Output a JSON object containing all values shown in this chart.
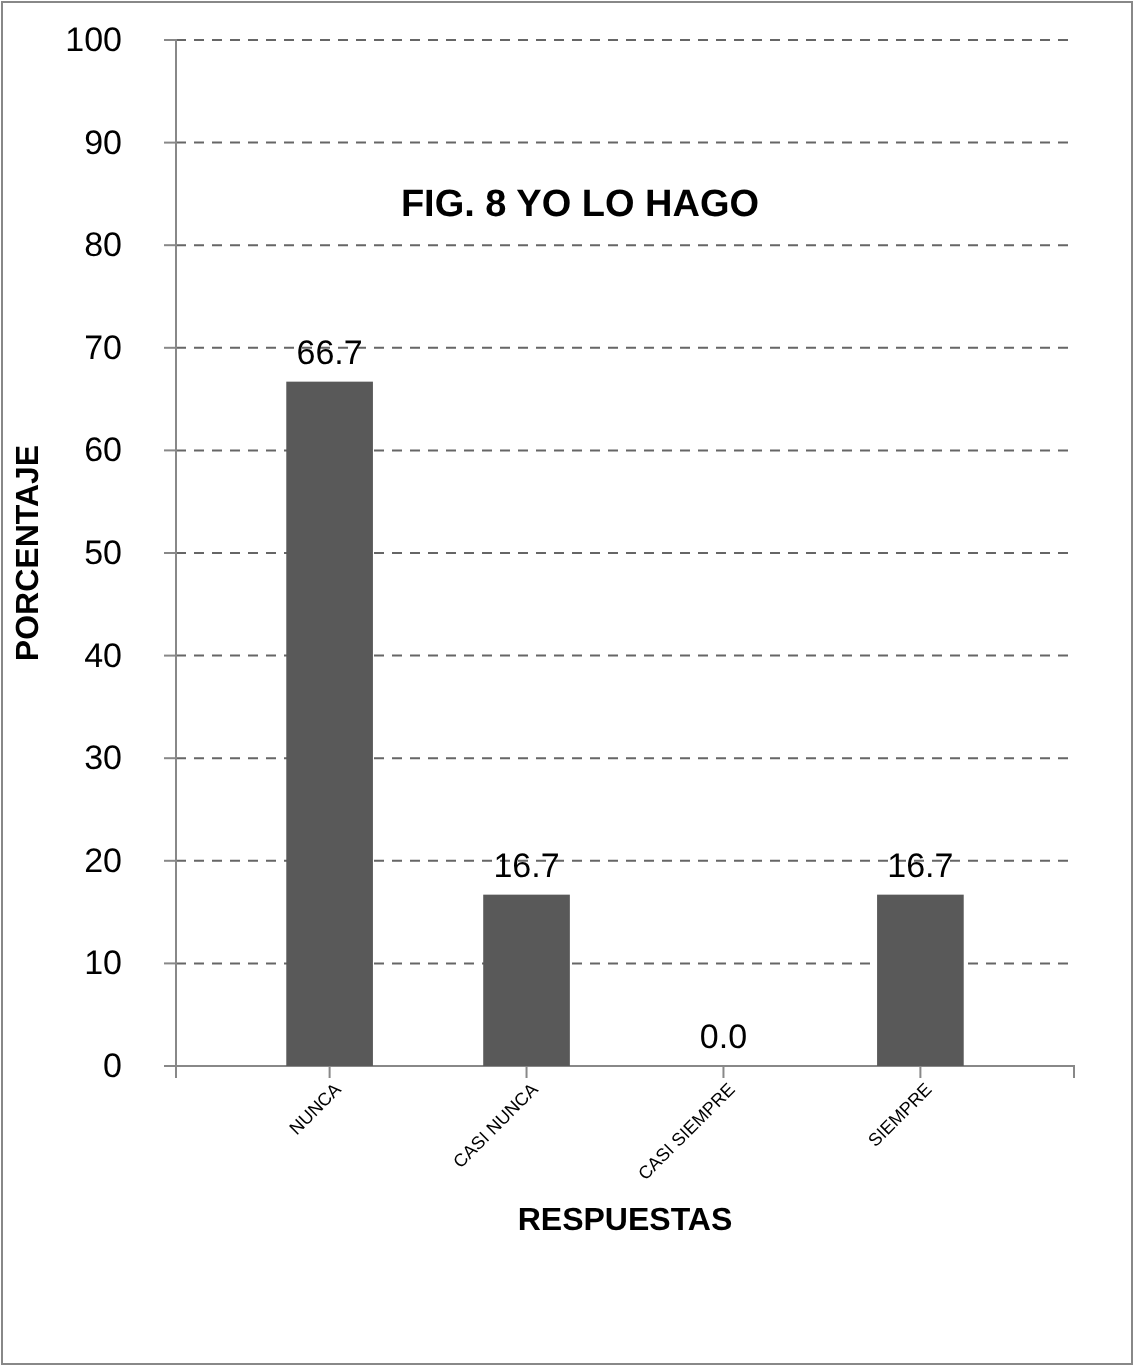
{
  "chart_data": {
    "type": "bar",
    "title": "FIG. 8 YO LO HAGO",
    "xlabel": "RESPUESTAS",
    "ylabel": "PORCENTAJE",
    "categories": [
      "NUNCA",
      "CASI NUNCA",
      "CASI SIEMPRE",
      "SIEMPRE"
    ],
    "values": [
      66.7,
      16.7,
      0,
      16.7
    ],
    "value_labels": [
      "66.7",
      "16.7",
      "0.0",
      "16.7"
    ],
    "color": "#595959",
    "ylim": [
      0,
      100
    ],
    "yticks": [
      0,
      10,
      20,
      30,
      40,
      50,
      60,
      70,
      80,
      90,
      100
    ],
    "grid": "y"
  }
}
